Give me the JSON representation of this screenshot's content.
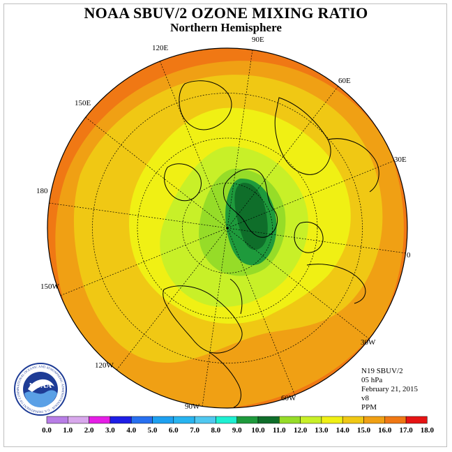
{
  "title": "NOAA SBUV/2 OZONE MIXING RATIO",
  "subtitle": "Northern Hemisphere",
  "longitude_labels": {
    "e90": "90E",
    "e60": "60E",
    "e30": "30E",
    "zero": "0",
    "w30": "30W",
    "w60": "60W",
    "w90": "90W",
    "w120": "120W",
    "w150": "150W",
    "d180": "180",
    "e150": "150E",
    "e120": "120E"
  },
  "info": {
    "instrument": "N19 SBUV/2",
    "level": "05 hPa",
    "date": "February 21, 2015",
    "version": "v8",
    "units": "PPM"
  },
  "logo": {
    "text": "NOAA",
    "ring_text": "NATIONAL OCEANIC AND ATMOSPHERIC ADMINISTRATION · U.S. DEPARTMENT OF COMMERCE"
  },
  "colorbar": {
    "labels": [
      "0.0",
      "1.0",
      "2.0",
      "3.0",
      "4.0",
      "5.0",
      "6.0",
      "7.0",
      "8.0",
      "9.0",
      "10.0",
      "11.0",
      "12.0",
      "13.0",
      "14.0",
      "15.0",
      "16.0",
      "17.0",
      "18.0"
    ],
    "colors": [
      "#b87ee6",
      "#d8a8ec",
      "#e61ee6",
      "#1e1ee6",
      "#2870f0",
      "#1ea0f0",
      "#28b4f0",
      "#50c8f0",
      "#1ef0d2",
      "#1e9a3c",
      "#0f6e2a",
      "#96dc28",
      "#c8f028",
      "#f0f014",
      "#f0c814",
      "#f0a014",
      "#f07814",
      "#e61414",
      "#8c5a3c"
    ]
  },
  "map": {
    "fields": [
      {
        "level": "13-14",
        "color": "#f0c814"
      },
      {
        "level": "14-15",
        "color": "#f0a014"
      },
      {
        "level": "15-16",
        "color": "#f07814"
      },
      {
        "level": "12-13",
        "color": "#f0f014"
      },
      {
        "level": "11-12",
        "color": "#c8f028"
      },
      {
        "level": "10-11",
        "color": "#96dc28"
      },
      {
        "level": "9-10",
        "color": "#1e9a3c"
      },
      {
        "level": "> 10",
        "color": "#0f6e2a"
      }
    ]
  }
}
